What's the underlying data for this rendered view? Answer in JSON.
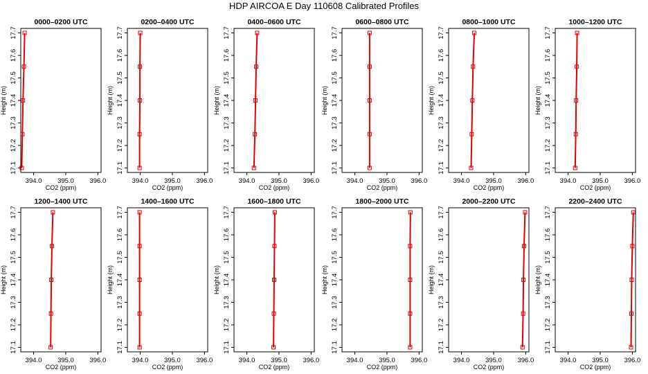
{
  "figure": {
    "title": "HDP AIRCOA E  Day 110608  Calibrated Profiles"
  },
  "style": {
    "line_color": "#dd0000",
    "axis_color": "#000000"
  },
  "chart_data": [
    {
      "type": "line",
      "title": "0000–0200 UTC",
      "xlabel": "CO2 (ppm)",
      "ylabel": "Height (m)",
      "xlim": [
        393.6,
        396.1
      ],
      "ylim": [
        17.08,
        17.72
      ],
      "x_ticks": [
        "394.0",
        "395.0",
        "396.0"
      ],
      "y_ticks": [
        "17.1",
        "17.2",
        "17.3",
        "17.4",
        "17.5",
        "17.6",
        "17.7"
      ],
      "series": [
        {
          "x": [
            393.63,
            393.65,
            393.67,
            393.7,
            393.72
          ],
          "y": [
            17.1,
            17.25,
            17.4,
            17.55,
            17.7
          ]
        }
      ]
    },
    {
      "type": "line",
      "title": "0200–0400 UTC",
      "xlabel": "CO2 (ppm)",
      "ylabel": "Height (m)",
      "xlim": [
        393.6,
        396.1
      ],
      "ylim": [
        17.08,
        17.72
      ],
      "x_ticks": [
        "394.0",
        "395.0",
        "396.0"
      ],
      "y_ticks": [
        "17.1",
        "17.2",
        "17.3",
        "17.4",
        "17.5",
        "17.6",
        "17.7"
      ],
      "series": [
        {
          "x": [
            393.98,
            393.98,
            393.99,
            393.99,
            394.0
          ],
          "y": [
            17.1,
            17.25,
            17.4,
            17.55,
            17.7
          ]
        }
      ]
    },
    {
      "type": "line",
      "title": "0400–0600 UTC",
      "xlabel": "CO2 (ppm)",
      "ylabel": "Height (m)",
      "xlim": [
        393.6,
        396.1
      ],
      "ylim": [
        17.08,
        17.72
      ],
      "x_ticks": [
        "394.0",
        "395.0",
        "396.0"
      ],
      "y_ticks": [
        "17.1",
        "17.2",
        "17.3",
        "17.4",
        "17.5",
        "17.6",
        "17.7"
      ],
      "series": [
        {
          "x": [
            394.22,
            394.25,
            394.27,
            394.29,
            394.32
          ],
          "y": [
            17.1,
            17.25,
            17.4,
            17.55,
            17.7
          ]
        }
      ]
    },
    {
      "type": "line",
      "title": "0600–0800 UTC",
      "xlabel": "CO2 (ppm)",
      "ylabel": "Height (m)",
      "xlim": [
        393.6,
        396.1
      ],
      "ylim": [
        17.08,
        17.72
      ],
      "x_ticks": [
        "394.0",
        "395.0",
        "396.0"
      ],
      "y_ticks": [
        "17.1",
        "17.2",
        "17.3",
        "17.4",
        "17.5",
        "17.6",
        "17.7"
      ],
      "series": [
        {
          "x": [
            394.46,
            394.46,
            394.46,
            394.46,
            394.46
          ],
          "y": [
            17.1,
            17.25,
            17.4,
            17.55,
            17.7
          ]
        }
      ]
    },
    {
      "type": "line",
      "title": "0800–1000 UTC",
      "xlabel": "CO2 (ppm)",
      "ylabel": "Height (m)",
      "xlim": [
        393.6,
        396.1
      ],
      "ylim": [
        17.08,
        17.72
      ],
      "x_ticks": [
        "394.0",
        "395.0",
        "396.0"
      ],
      "y_ticks": [
        "17.1",
        "17.2",
        "17.3",
        "17.4",
        "17.5",
        "17.6",
        "17.7"
      ],
      "series": [
        {
          "x": [
            394.3,
            394.32,
            394.34,
            394.36,
            394.4
          ],
          "y": [
            17.1,
            17.25,
            17.4,
            17.55,
            17.7
          ]
        }
      ]
    },
    {
      "type": "line",
      "title": "1000–1200 UTC",
      "xlabel": "CO2 (ppm)",
      "ylabel": "Height (m)",
      "xlim": [
        393.6,
        396.1
      ],
      "ylim": [
        17.08,
        17.72
      ],
      "x_ticks": [
        "394.0",
        "395.0",
        "396.0"
      ],
      "y_ticks": [
        "17.1",
        "17.2",
        "17.3",
        "17.4",
        "17.5",
        "17.6",
        "17.7"
      ],
      "series": [
        {
          "x": [
            394.22,
            394.24,
            394.25,
            394.27,
            394.28
          ],
          "y": [
            17.1,
            17.25,
            17.4,
            17.55,
            17.7
          ]
        }
      ]
    },
    {
      "type": "line",
      "title": "1200–1400 UTC",
      "xlabel": "CO2 (ppm)",
      "ylabel": "Height (m)",
      "xlim": [
        393.6,
        396.1
      ],
      "ylim": [
        17.08,
        17.72
      ],
      "x_ticks": [
        "394.0",
        "395.0",
        "396.0"
      ],
      "y_ticks": [
        "17.1",
        "17.2",
        "17.3",
        "17.4",
        "17.5",
        "17.6",
        "17.7"
      ],
      "series": [
        {
          "x": [
            394.53,
            394.54,
            394.55,
            394.57,
            394.6
          ],
          "y": [
            17.1,
            17.25,
            17.4,
            17.55,
            17.7
          ]
        }
      ]
    },
    {
      "type": "line",
      "title": "1400–1600 UTC",
      "xlabel": "CO2 (ppm)",
      "ylabel": "Height (m)",
      "xlim": [
        393.6,
        396.1
      ],
      "ylim": [
        17.08,
        17.72
      ],
      "x_ticks": [
        "394.0",
        "395.0",
        "396.0"
      ],
      "y_ticks": [
        "17.1",
        "17.2",
        "17.3",
        "17.4",
        "17.5",
        "17.6",
        "17.7"
      ],
      "series": [
        {
          "x": [
            393.98,
            393.98,
            393.98,
            393.98,
            393.98
          ],
          "y": [
            17.1,
            17.25,
            17.4,
            17.55,
            17.7
          ]
        }
      ]
    },
    {
      "type": "line",
      "title": "1600–1800 UTC",
      "xlabel": "CO2 (ppm)",
      "ylabel": "Height (m)",
      "xlim": [
        393.6,
        396.1
      ],
      "ylim": [
        17.08,
        17.72
      ],
      "x_ticks": [
        "394.0",
        "395.0",
        "396.0"
      ],
      "y_ticks": [
        "17.1",
        "17.2",
        "17.3",
        "17.4",
        "17.5",
        "17.6",
        "17.7"
      ],
      "series": [
        {
          "x": [
            394.83,
            394.84,
            394.85,
            394.86,
            394.87
          ],
          "y": [
            17.1,
            17.25,
            17.4,
            17.55,
            17.7
          ]
        }
      ]
    },
    {
      "type": "line",
      "title": "1800–2000 UTC",
      "xlabel": "CO2 (ppm)",
      "ylabel": "Height (m)",
      "xlim": [
        393.6,
        396.1
      ],
      "ylim": [
        17.08,
        17.72
      ],
      "x_ticks": [
        "394.0",
        "395.0",
        "396.0"
      ],
      "y_ticks": [
        "17.1",
        "17.2",
        "17.3",
        "17.4",
        "17.5",
        "17.6",
        "17.7"
      ],
      "series": [
        {
          "x": [
            395.72,
            395.72,
            395.72,
            395.72,
            395.73
          ],
          "y": [
            17.1,
            17.25,
            17.4,
            17.55,
            17.7
          ]
        }
      ]
    },
    {
      "type": "line",
      "title": "2000–2200 UTC",
      "xlabel": "CO2 (ppm)",
      "ylabel": "Height (m)",
      "xlim": [
        393.6,
        396.1
      ],
      "ylim": [
        17.08,
        17.72
      ],
      "x_ticks": [
        "394.0",
        "395.0",
        "396.0"
      ],
      "y_ticks": [
        "17.1",
        "17.2",
        "17.3",
        "17.4",
        "17.5",
        "17.6",
        "17.7"
      ],
      "series": [
        {
          "x": [
            395.9,
            395.92,
            395.93,
            395.95,
            395.98
          ],
          "y": [
            17.1,
            17.25,
            17.4,
            17.55,
            17.7
          ]
        }
      ]
    },
    {
      "type": "line",
      "title": "2200–2400 UTC",
      "xlabel": "CO2 (ppm)",
      "ylabel": "Height (m)",
      "xlim": [
        393.6,
        396.1
      ],
      "ylim": [
        17.08,
        17.72
      ],
      "x_ticks": [
        "394.0",
        "395.0",
        "396.0"
      ],
      "y_ticks": [
        "17.1",
        "17.2",
        "17.3",
        "17.4",
        "17.5",
        "17.6",
        "17.7"
      ],
      "series": [
        {
          "x": [
            395.96,
            395.97,
            395.98,
            396.0,
            396.03
          ],
          "y": [
            17.1,
            17.25,
            17.4,
            17.55,
            17.7
          ]
        }
      ]
    }
  ]
}
